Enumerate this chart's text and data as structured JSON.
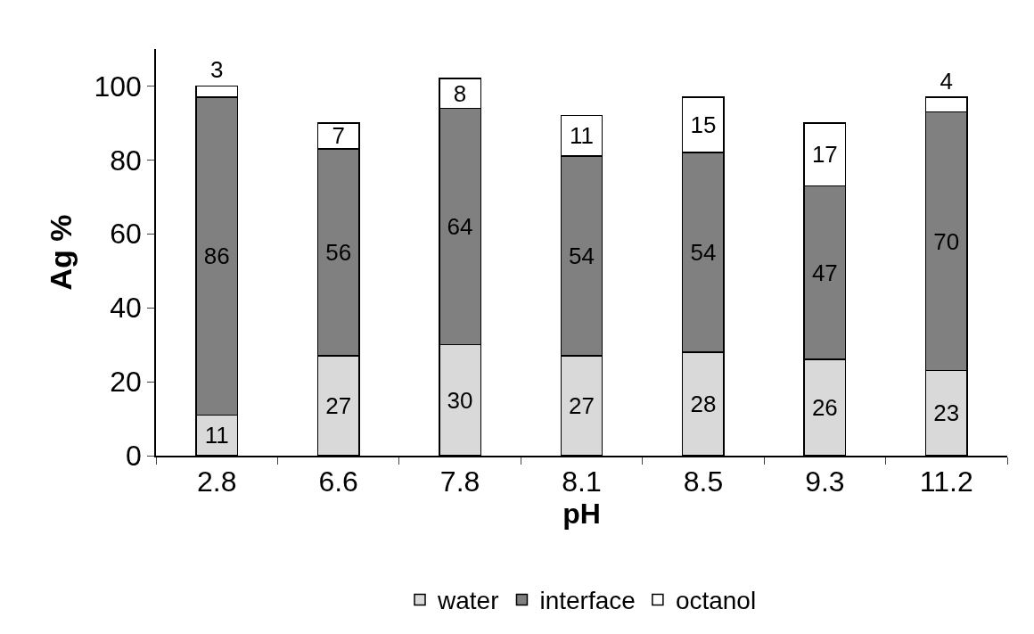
{
  "chart_data": {
    "type": "bar",
    "stacked": true,
    "xlabel": "pH",
    "ylabel": "Ag %",
    "categories": [
      "2.8",
      "6.6",
      "7.8",
      "8.1",
      "8.5",
      "9.3",
      "11.2"
    ],
    "series": [
      {
        "name": "water",
        "color": "#d9d9d9",
        "values": [
          11,
          27,
          30,
          27,
          28,
          26,
          23
        ]
      },
      {
        "name": "interface",
        "color": "#808080",
        "values": [
          86,
          56,
          64,
          54,
          54,
          47,
          70
        ]
      },
      {
        "name": "octanol",
        "color": "#ffffff",
        "values": [
          3,
          7,
          8,
          11,
          15,
          17,
          4
        ]
      }
    ],
    "ylim": [
      0,
      110
    ],
    "yticks": [
      0,
      20,
      40,
      60,
      80,
      100
    ],
    "grid": false,
    "legend": "bottom",
    "data_labels": true
  }
}
